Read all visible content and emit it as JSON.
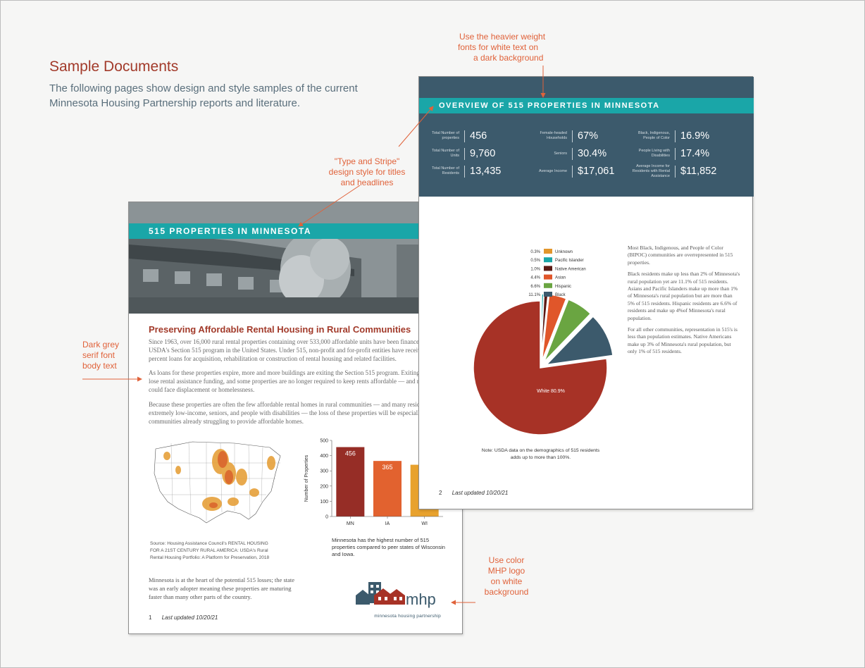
{
  "header": {
    "title": "Sample Documents",
    "subtitle": "The following pages show design and style samples of the current Minnesota Housing Partnership reports and literature."
  },
  "callouts": {
    "heavier_fonts": [
      "Use the heavier weight",
      "fonts for white text on",
      "a dark background"
    ],
    "type_stripe": [
      "\"Type and Stripe\"",
      "design style for titles",
      "and  headlines"
    ],
    "serif_body": [
      "Dark grey",
      "serif font",
      "body text"
    ],
    "logo": [
      "Use color",
      "MHP logo",
      "on white",
      "background"
    ]
  },
  "colors": {
    "accent_red": "#a23a2a",
    "teal_stripe": "#1aa6a8",
    "slate_blue": "#3c5a6c",
    "callout_orange": "#e0623a"
  },
  "page1": {
    "stripe_title": "515 PROPERTIES IN MINNESOTA",
    "heading": "Preserving Affordable Rental Housing in Rural Communities",
    "paragraph1": "Since 1963, over 16,000 rural rental properties containing over 533,000 affordable units have been financed a USDA's Section 515 program in the United States. Under 515, non-profit and for-profit entities have received 1 percent loans for acquisition, rehabilitation or construction of rental housing and related facilities.",
    "paragraph2": "As loans for these properties expire, more and more buildings are exiting the Section 515 program. Exiting pr may lose rental assistance funding, and some properties are no longer required to keep rents affordable — and residents could face displacement or homelessness.",
    "paragraph3": "Because these properties are often the few affordable rental homes in rural communities — and many residen extremely low-income, seniors, and people with disabilities — the loss of these properties will be especially ac communities already struggling to provide affordable homes.",
    "map_source": "Source: Housing Assistance Council's RENTAL HOUSING FOR A 21ST CENTURY RURAL AMERICA: USDA's Rural Rental Housing Portfolio: A Platform for Preservation, 2018",
    "chart_caption": "Minnesota has the highest number of 515 properties compared to peer states of Wisconsin and Iowa.",
    "closing": "Minnesota is at the heart of the potential 515 losses; the state was an early adopter meaning these properties are maturing faster than many other parts of the country.",
    "logo_text": "mhp",
    "logo_tagline": "minnesota housing partnership",
    "page_number": "1",
    "last_updated": "Last updated 10/20/21"
  },
  "page2": {
    "stripe_title": "OVERVIEW OF 515 PROPERTIES IN MINNESOTA",
    "stats": [
      {
        "label": "Total Number of properties",
        "value": "456"
      },
      {
        "label": "Total Number of Units",
        "value": "9,760"
      },
      {
        "label": "Total Number of Residents",
        "value": "13,435"
      },
      {
        "label": "Female-headed Households",
        "value": "67%"
      },
      {
        "label": "Seniors",
        "value": "30.4%"
      },
      {
        "label": "Average Income",
        "value": "$17,061"
      },
      {
        "label": "Black, Indigenous, People of Color",
        "value": "16.9%"
      },
      {
        "label": "People Living with Disabilities",
        "value": "17.4%"
      },
      {
        "label": "Average Income for Residents with Rental Assistance",
        "value": "$11,852"
      }
    ],
    "text": [
      "Most Black, Indigenous, and People of Color (BIPOC) communities are overrepresented in 515 properties.",
      "Black residents make up less than 2% of Minnesota's rural population yet are 11.1% of 515 residents. Asians and Pacific Islanders make up more than 1% of Minnesota's rural population but are more than 5% of 515 residents. Hispanic residents are 6.6% of residents and make up 4%of Minnesota's rural population.",
      "For all other communities, representation in 515's is less than population estimates. Native Americans make up 3% of Minnesota's rural population, but only 1% of 515 residents."
    ],
    "note": "Note: USDA data on the demographics of 515 residents adds up to more than 100%.",
    "page_number": "2",
    "last_updated": "Last updated 10/20/21"
  },
  "chart_data": [
    {
      "type": "bar",
      "categories": [
        "MN",
        "IA",
        "WI"
      ],
      "values": [
        456,
        365,
        340
      ],
      "data_labels": [
        "456",
        "365",
        ""
      ],
      "colors": [
        "#962d26",
        "#e2622f",
        "#e8a22e"
      ],
      "ylabel": "Number of Properties",
      "ylim": [
        0,
        500
      ],
      "yticks": [
        0,
        100,
        200,
        300,
        400,
        500
      ],
      "grid": false
    },
    {
      "type": "pie",
      "slices": [
        {
          "label": "Unknown",
          "pct_text": "0.3%",
          "value": 0.3,
          "color": "#e2962c"
        },
        {
          "label": "Pacific Islander",
          "pct_text": "0.5%",
          "value": 0.5,
          "color": "#1aa6a8"
        },
        {
          "label": "Native American",
          "pct_text": "1.0%",
          "value": 1.0,
          "color": "#5c1a14"
        },
        {
          "label": "Asian",
          "pct_text": "4.4%",
          "value": 4.4,
          "color": "#e0562a"
        },
        {
          "label": "Hispanic",
          "pct_text": "6.6%",
          "value": 6.6,
          "color": "#6aa541"
        },
        {
          "label": "Black",
          "pct_text": "11.1%",
          "value": 11.1,
          "color": "#3c5a6c"
        },
        {
          "label": "White",
          "pct_text": "",
          "value": 80.9,
          "color": "#a73226"
        }
      ],
      "white_label": "White 80.9%",
      "legend_position": "top-right"
    }
  ]
}
